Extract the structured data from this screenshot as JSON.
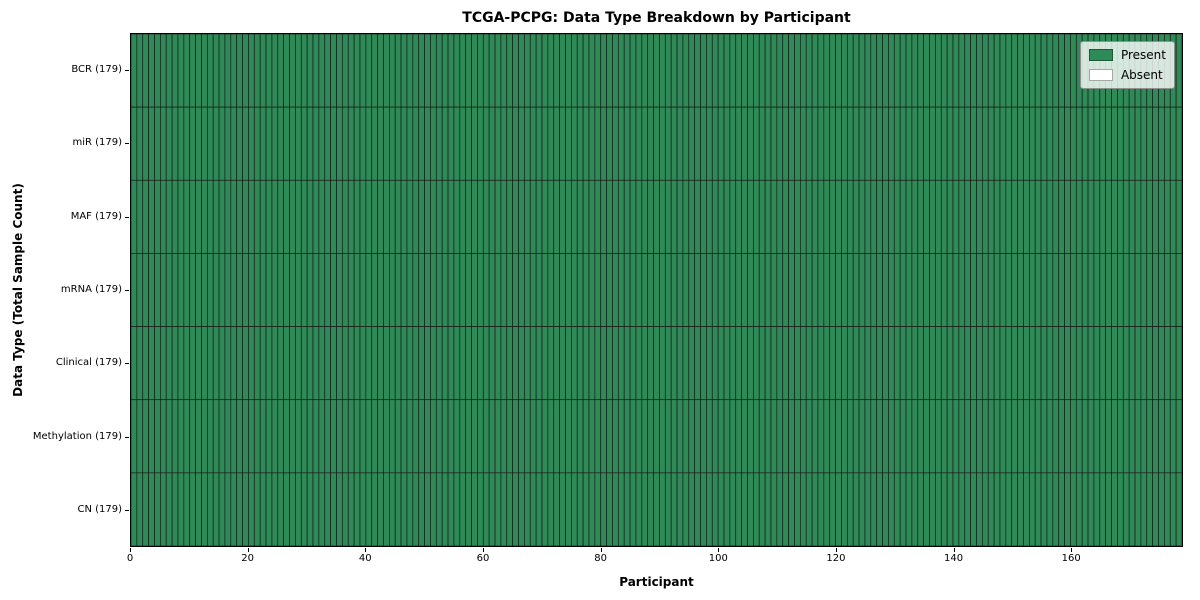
{
  "chart_data": {
    "type": "heatmap",
    "title": "TCGA-PCPG: Data Type Breakdown by Participant",
    "xlabel": "Participant",
    "ylabel": "Data Type (Total Sample Count)",
    "n_participants": 179,
    "xlim": [
      0,
      179
    ],
    "x_ticks": [
      0,
      20,
      40,
      60,
      80,
      100,
      120,
      140,
      160
    ],
    "rows": [
      {
        "label": "BCR (179)",
        "data_type": "BCR",
        "total": 179,
        "present": 179
      },
      {
        "label": "miR (179)",
        "data_type": "miR",
        "total": 179,
        "present": 179
      },
      {
        "label": "MAF (179)",
        "data_type": "MAF",
        "total": 179,
        "present": 179
      },
      {
        "label": "mRNA (179)",
        "data_type": "mRNA",
        "total": 179,
        "present": 179
      },
      {
        "label": "Clinical (179)",
        "data_type": "Clinical",
        "total": 179,
        "present": 179
      },
      {
        "label": "Methylation (179)",
        "data_type": "Methylation",
        "total": 179,
        "present": 179
      },
      {
        "label": "CN (179)",
        "data_type": "CN",
        "total": 179,
        "present": 179
      }
    ],
    "colors": {
      "present": "#2e8b57",
      "absent": "#ffffff",
      "grid_line": "#1a1a1a"
    },
    "legend_position": "upper right",
    "grid": true
  },
  "legend": {
    "items": [
      {
        "label": "Present",
        "color": "#2e8b57"
      },
      {
        "label": "Absent",
        "color": "#ffffff"
      }
    ]
  }
}
